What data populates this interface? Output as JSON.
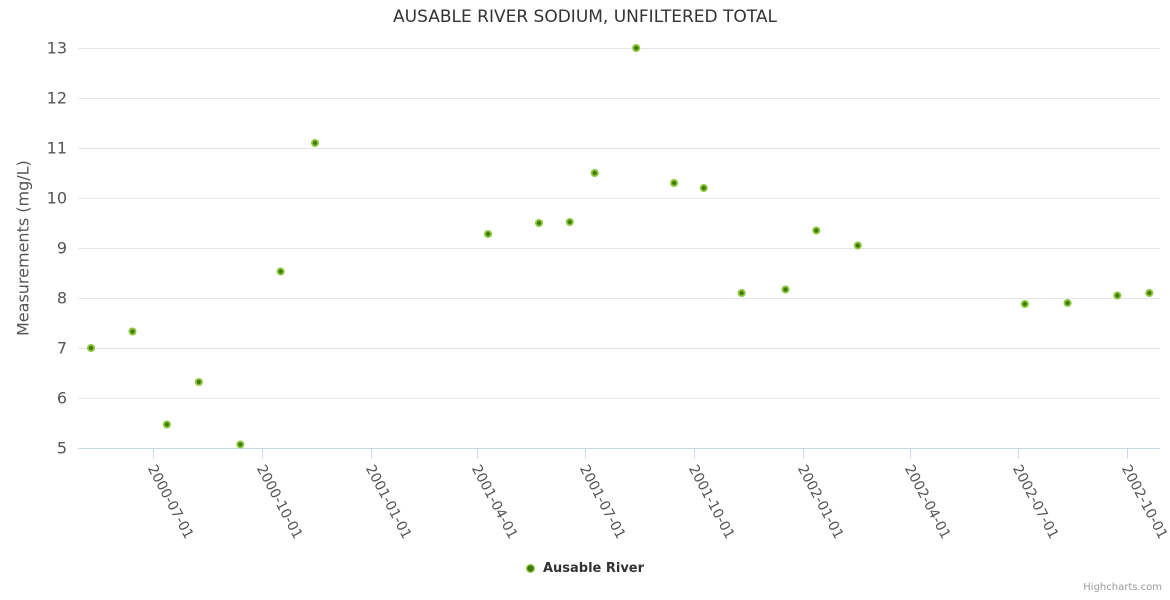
{
  "credits": "Highcharts.com",
  "colors": {
    "marker": "#8cc63f",
    "marker_center": "#3e7a00",
    "grid_line": "#e6e6e6",
    "axis_line": "#ccd6eb",
    "title_text": "#333333",
    "axis_label_text": "#555555",
    "credits_text": "#999999"
  },
  "chart_data": {
    "type": "scatter",
    "title": "AUSABLE RIVER SODIUM, UNFILTERED TOTAL",
    "xlabel": "",
    "ylabel": "Measurements (mg/L)",
    "ylim": [
      5,
      13
    ],
    "y_ticks": [
      5,
      6,
      7,
      8,
      9,
      10,
      11,
      12,
      13
    ],
    "xlim": [
      "2000-04-29",
      "2002-10-29"
    ],
    "x_ticks": [
      "2000-07-01",
      "2000-10-01",
      "2001-01-01",
      "2001-04-01",
      "2001-07-01",
      "2001-10-01",
      "2002-01-01",
      "2002-04-01",
      "2002-07-01",
      "2002-10-01"
    ],
    "grid": "horizontal",
    "legend_position": "bottom-center",
    "series": [
      {
        "name": "Ausable River",
        "points": [
          {
            "date": "2000-05-10",
            "value": 7.0
          },
          {
            "date": "2000-06-14",
            "value": 7.33
          },
          {
            "date": "2000-07-13",
            "value": 5.47
          },
          {
            "date": "2000-08-09",
            "value": 6.32
          },
          {
            "date": "2000-09-13",
            "value": 5.07
          },
          {
            "date": "2000-10-17",
            "value": 8.53
          },
          {
            "date": "2000-11-15",
            "value": 11.1
          },
          {
            "date": "2001-04-10",
            "value": 9.28
          },
          {
            "date": "2001-05-23",
            "value": 9.5
          },
          {
            "date": "2001-06-18",
            "value": 9.52
          },
          {
            "date": "2001-07-09",
            "value": 10.5
          },
          {
            "date": "2001-08-13",
            "value": 13.0
          },
          {
            "date": "2001-09-14",
            "value": 10.3
          },
          {
            "date": "2001-10-09",
            "value": 10.2
          },
          {
            "date": "2001-11-10",
            "value": 8.1
          },
          {
            "date": "2001-12-17",
            "value": 8.17
          },
          {
            "date": "2002-01-12",
            "value": 9.35
          },
          {
            "date": "2002-02-16",
            "value": 9.05
          },
          {
            "date": "2002-07-07",
            "value": 7.88
          },
          {
            "date": "2002-08-12",
            "value": 7.9
          },
          {
            "date": "2002-09-23",
            "value": 8.05
          },
          {
            "date": "2002-10-20",
            "value": 8.1
          }
        ]
      }
    ]
  }
}
